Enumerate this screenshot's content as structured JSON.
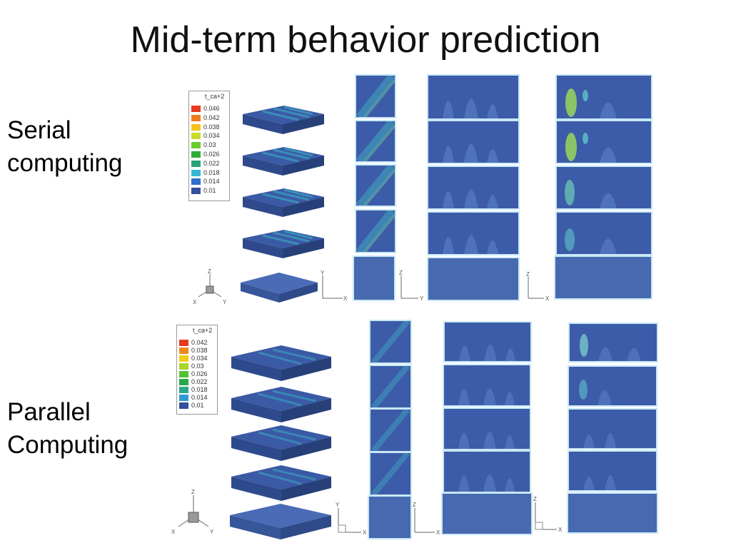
{
  "slide": {
    "title": "Mid-term behavior prediction",
    "serial_label": "Serial\ncomputing",
    "parallel_label": "Parallel\nComputing"
  },
  "serial": {
    "legend": {
      "title": "t_ca+2",
      "ticks": [
        "0.046",
        "0.042",
        "0.038",
        "0.034",
        "0.03",
        "0.026",
        "0.022",
        "0.018",
        "0.014",
        "0.01"
      ],
      "colors": [
        "#e63a1e",
        "#f07b1c",
        "#f4c21a",
        "#c9dc28",
        "#6ccb2e",
        "#2fae3a",
        "#27a47c",
        "#35b7d2",
        "#2f6fce",
        "#344f9e"
      ]
    },
    "axes": {
      "iso": [
        "Z",
        "X",
        "Y"
      ],
      "xy": [
        "Y",
        "X"
      ],
      "xz": [
        "Z",
        "Y"
      ],
      "yz": [
        "Z",
        "X"
      ]
    }
  },
  "parallel": {
    "legend": {
      "title": "t_ca+2",
      "ticks": [
        "0.042",
        "0.038",
        "0.034",
        "0.03",
        "0.026",
        "0.022",
        "0.018",
        "0.014",
        "0.01"
      ],
      "colors": [
        "#e63a1e",
        "#f08a1c",
        "#f2cc1c",
        "#a9d42a",
        "#53c230",
        "#2aa94a",
        "#2aa88c",
        "#2f9ad6",
        "#344f9e"
      ]
    },
    "axes": {
      "iso": [
        "Z",
        "X",
        "Y"
      ],
      "xy": [
        "Y",
        "X"
      ],
      "xz": [
        "Z",
        "X"
      ],
      "yz": [
        "Z",
        "X"
      ]
    }
  }
}
